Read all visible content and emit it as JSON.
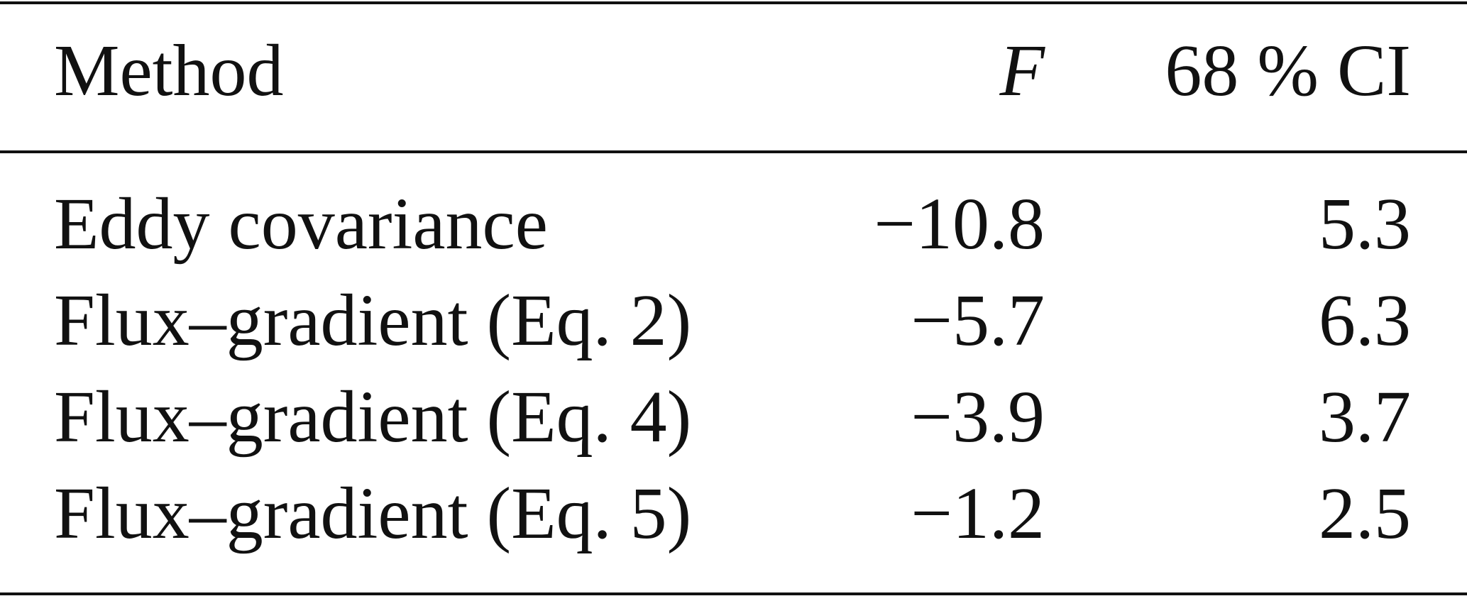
{
  "table": {
    "header": [
      "Method",
      "F",
      "68 % CI"
    ],
    "rows": [
      [
        "Eddy covariance",
        "−10.8",
        "5.3"
      ],
      [
        "Flux–gradient (Eq. 2)",
        "−5.7",
        "6.3"
      ],
      [
        "Flux–gradient (Eq. 4)",
        "−3.9",
        "3.7"
      ],
      [
        "Flux–gradient (Eq. 5)",
        "−1.2",
        "2.5"
      ]
    ]
  }
}
